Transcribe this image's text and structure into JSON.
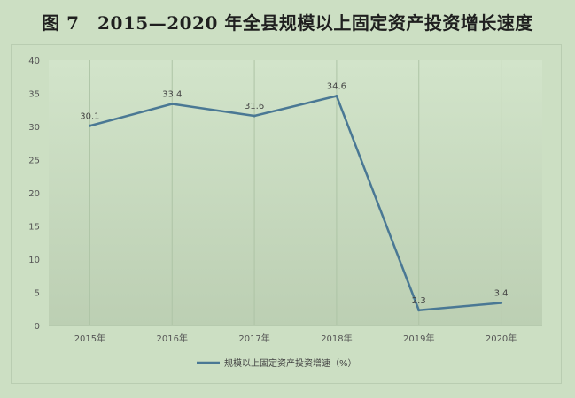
{
  "title": "图 7　2015—2020 年全县规模以上固定资产投资增长速度",
  "colors": {
    "background": "#ccdfc3",
    "line": "#4a7894",
    "grid": "#aec4a6"
  },
  "chart_data": {
    "type": "line",
    "categories": [
      "2015年",
      "2016年",
      "2017年",
      "2018年",
      "2019年",
      "2020年"
    ],
    "series": [
      {
        "name": "规模以上固定资产投资增速（%）",
        "values": [
          30.1,
          33.4,
          31.6,
          34.6,
          2.3,
          3.4
        ]
      }
    ],
    "data_labels": [
      "30.1",
      "33.4",
      "31.6",
      "34.6",
      "2.3",
      "3.4"
    ],
    "yticks": [
      "0",
      "5",
      "10",
      "15",
      "20",
      "25",
      "30",
      "35",
      "40"
    ],
    "ylim": [
      0,
      40
    ],
    "grid": "vertical lines at categories",
    "legend_position": "bottom"
  }
}
